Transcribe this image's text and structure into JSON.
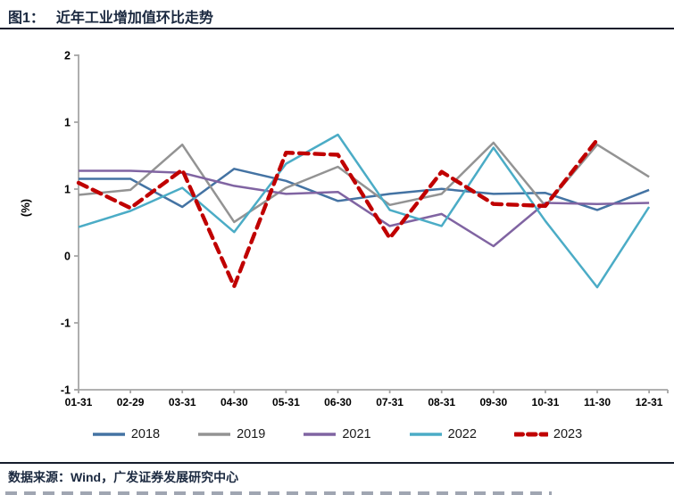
{
  "header": {
    "figure_label": "图1：",
    "title": "近年工业增加值环比走势"
  },
  "footer": {
    "source_text": "数据来源：Wind，广发证券发展研究中心"
  },
  "style": {
    "accent_navy": "#1B2940",
    "rule_color": "#151D2C",
    "axis_gray": "#A6A6A6",
    "tick_text_color": "#000000"
  },
  "chart_data": {
    "type": "line",
    "title": "近年工业增加值环比走势",
    "xlabel": "",
    "ylabel": "(%)",
    "categories": [
      "01-31",
      "02-29",
      "03-31",
      "04-30",
      "05-31",
      "06-30",
      "07-31",
      "08-31",
      "09-30",
      "10-31",
      "11-30",
      "12-31"
    ],
    "y_tick_labels": [
      "2",
      "1",
      "1",
      "0",
      "-1",
      "-1"
    ],
    "ylim": [
      -1.33,
      2
    ],
    "grid": false,
    "legend_position": "bottom",
    "series": [
      {
        "name": "2018",
        "color": "#4473A3",
        "dash": "solid",
        "values": [
          0.77,
          0.77,
          0.49,
          0.87,
          0.75,
          0.55,
          0.62,
          0.67,
          0.62,
          0.63,
          0.46,
          0.66
        ]
      },
      {
        "name": "2019",
        "color": "#939393",
        "dash": "solid",
        "values": [
          0.61,
          0.66,
          1.11,
          0.34,
          0.68,
          0.89,
          0.51,
          0.62,
          1.13,
          0.5,
          1.11,
          0.79
        ]
      },
      {
        "name": "2021",
        "color": "#8064A2",
        "dash": "solid",
        "values": [
          0.85,
          0.85,
          0.83,
          0.7,
          0.62,
          0.64,
          0.3,
          0.42,
          0.1,
          0.53,
          0.52,
          0.53
        ]
      },
      {
        "name": "2022",
        "color": "#4BACC6",
        "dash": "solid",
        "values": [
          0.29,
          0.45,
          0.68,
          0.24,
          0.92,
          1.21,
          0.46,
          0.3,
          1.08,
          0.35,
          -0.31,
          0.49
        ]
      },
      {
        "name": "2023",
        "color": "#C00000",
        "dash": "dashed",
        "values": [
          0.73,
          0.48,
          0.86,
          -0.3,
          1.03,
          1.01,
          0.18,
          0.84,
          0.52,
          0.5,
          1.16,
          null
        ]
      }
    ]
  }
}
